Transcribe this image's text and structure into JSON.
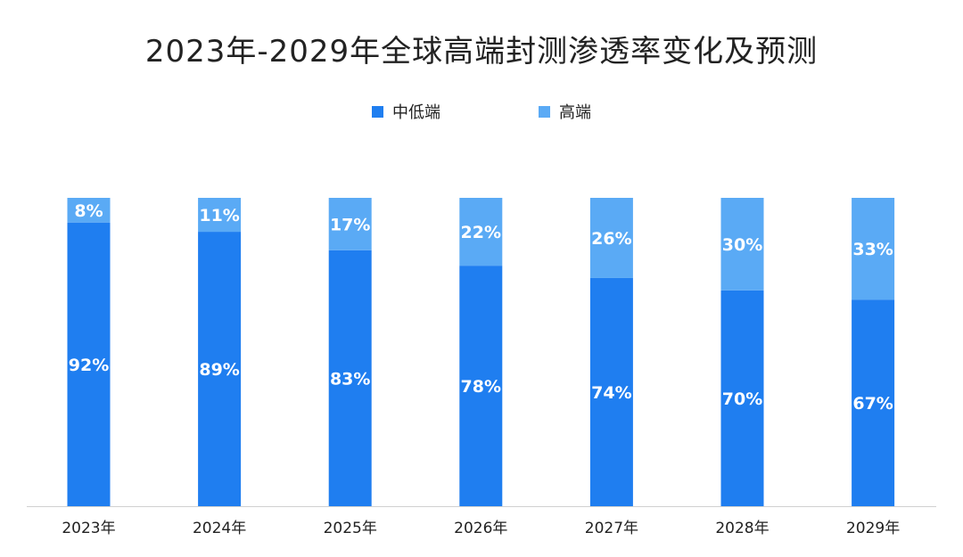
{
  "chart_data": {
    "type": "bar",
    "stacked": true,
    "title": "2023年-2029年全球高端封测渗透率变化及预测",
    "categories": [
      "2023年",
      "2024年",
      "2025年",
      "2026年",
      "2027年",
      "2028年",
      "2029年"
    ],
    "series": [
      {
        "name": "中低端",
        "values": [
          92,
          89,
          83,
          78,
          74,
          70,
          67
        ],
        "labels": [
          "92%",
          "89%",
          "83%",
          "78%",
          "74%",
          "70%",
          "67%"
        ],
        "color": "#1f7ef0"
      },
      {
        "name": "高端",
        "values": [
          8,
          11,
          17,
          22,
          26,
          30,
          33
        ],
        "labels": [
          "8%",
          "11%",
          "17%",
          "22%",
          "26%",
          "30%",
          "33%"
        ],
        "color": "#5aaaf5"
      }
    ],
    "ylim": [
      0,
      100
    ],
    "grid": false,
    "legend": "top-center",
    "xlabel": "",
    "ylabel": ""
  }
}
